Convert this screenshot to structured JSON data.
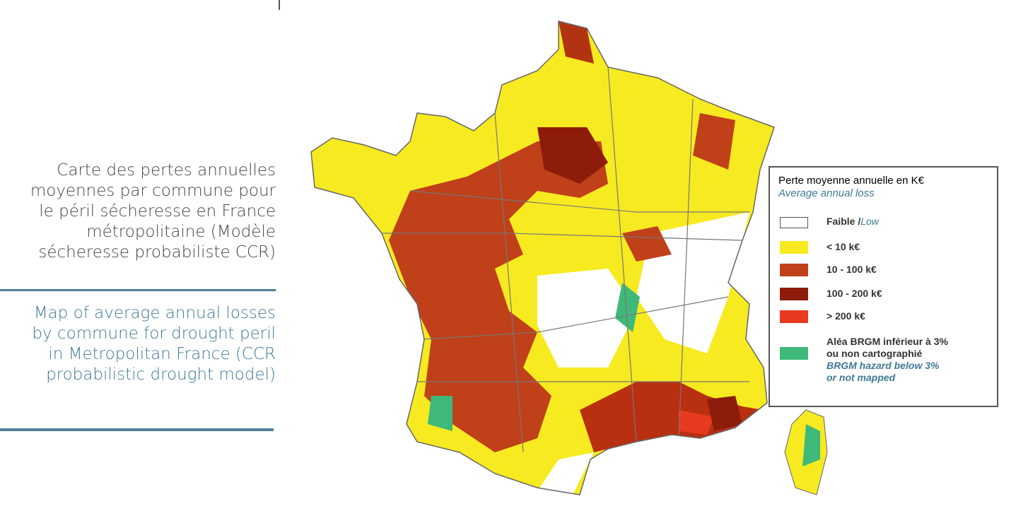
{
  "caption_fr": [
    "Carte des pertes annuelles",
    "moyennes par commune pour",
    "le péril sécheresse en France",
    "métropolitaine (Modèle",
    "sécheresse probabiliste CCR)"
  ],
  "caption_en": [
    "Map of average annual losses",
    "by commune for drought peril",
    "in Metropolitan France (CCR",
    "probabilistic drought model)"
  ],
  "legend": {
    "title": "Perte moyenne annuelle en K€",
    "subtitle": "Average annual loss",
    "items": [
      {
        "label": "Faible /",
        "label_en": "Low"
      },
      {
        "label": "< 10 k€"
      },
      {
        "label": "10 - 100 k€"
      },
      {
        "label": "100 - 200 k€"
      },
      {
        "label": "> 200 k€"
      },
      {
        "label": "Aléa BRGM inférieur à 3%",
        "label_2": "ou non cartographié",
        "label_en": "BRGM hazard below 3%",
        "label_en_2": "or not mapped"
      }
    ]
  }
}
